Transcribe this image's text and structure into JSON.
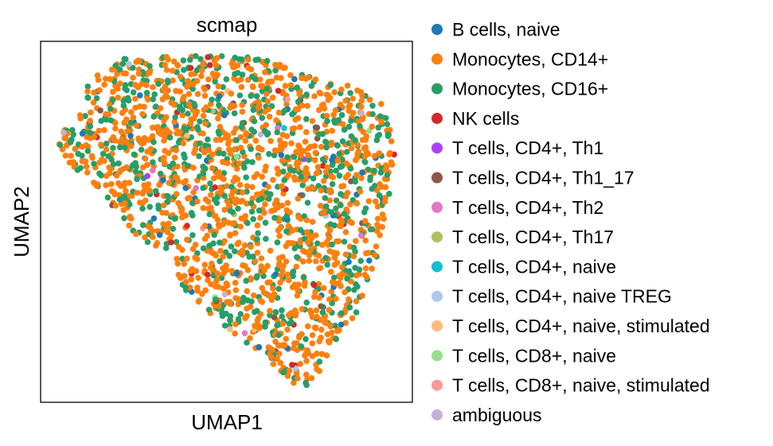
{
  "chart_data": {
    "type": "scatter",
    "title": "scmap",
    "xlabel": "UMAP1",
    "ylabel": "UMAP2",
    "ticks": "none",
    "grid": false,
    "legend_placement": "right, outside plot",
    "series": [
      {
        "name": "B cells, naive",
        "color": "#1f77b4",
        "n": 45
      },
      {
        "name": "Monocytes, CD14+",
        "color": "#ff7f0e",
        "n": 1200
      },
      {
        "name": "Monocytes, CD16+",
        "color": "#279e68",
        "n": 650
      },
      {
        "name": "NK cells",
        "color": "#d62728",
        "n": 25
      },
      {
        "name": "T cells, CD4+, Th1",
        "color": "#aa40fc",
        "n": 2
      },
      {
        "name": "T cells, CD4+, Th1_17",
        "color": "#8c564b",
        "n": 14
      },
      {
        "name": "T cells, CD4+, Th2",
        "color": "#e377c2",
        "n": 6
      },
      {
        "name": "T cells, CD4+, Th17",
        "color": "#b5bd61",
        "n": 4
      },
      {
        "name": "T cells, CD4+, naive",
        "color": "#17becf",
        "n": 1
      },
      {
        "name": "T cells, CD4+, naive TREG",
        "color": "#aec7e8",
        "n": 3
      },
      {
        "name": "T cells, CD4+, naive, stimulated",
        "color": "#ffbb78",
        "n": 4
      },
      {
        "name": "T cells, CD8+, naive",
        "color": "#98df8a",
        "n": 3
      },
      {
        "name": "T cells, CD8+, naive, stimulated",
        "color": "#ff9896",
        "n": 4
      },
      {
        "name": "ambiguous",
        "color": "#c5b0d5",
        "n": 5
      }
    ]
  }
}
